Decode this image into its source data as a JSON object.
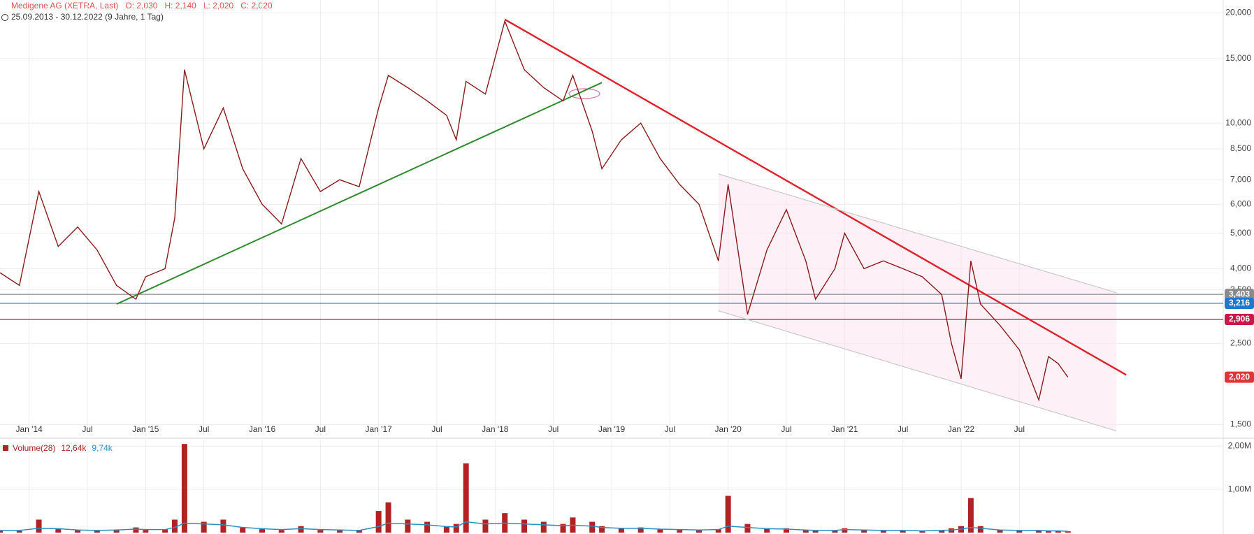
{
  "chart_data": [
    {
      "type": "line",
      "title": "Medigene AG (XETRA, Last)",
      "ohlc": [
        "O: 2,030",
        "H: 2,140",
        "L: 2,020",
        "C: 2,020"
      ],
      "subtitle": "25.09.2013 - 30.12.2022  (9 Jahre, 1 Tag)",
      "log_scale": true,
      "grid": true,
      "xlim": [
        "2013-10",
        "2024-04"
      ],
      "xticks": [
        {
          "value": "2014-01",
          "label": "Jan '14"
        },
        {
          "value": "2014-07",
          "label": "Jul"
        },
        {
          "value": "2015-01",
          "label": "Jan '15"
        },
        {
          "value": "2015-07",
          "label": "Jul"
        },
        {
          "value": "2016-01",
          "label": "Jan '16"
        },
        {
          "value": "2016-07",
          "label": "Jul"
        },
        {
          "value": "2017-01",
          "label": "Jan '17"
        },
        {
          "value": "2017-07",
          "label": "Jul"
        },
        {
          "value": "2018-01",
          "label": "Jan '18"
        },
        {
          "value": "2018-07",
          "label": "Jul"
        },
        {
          "value": "2019-01",
          "label": "Jan '19"
        },
        {
          "value": "2019-07",
          "label": "Jul"
        },
        {
          "value": "2020-01",
          "label": "Jan '20"
        },
        {
          "value": "2020-07",
          "label": "Jul"
        },
        {
          "value": "2021-01",
          "label": "Jan '21"
        },
        {
          "value": "2021-07",
          "label": "Jul"
        },
        {
          "value": "2022-01",
          "label": "Jan '22"
        },
        {
          "value": "2022-07",
          "label": "Jul"
        }
      ],
      "ylim": [
        1.4,
        21.7
      ],
      "yticks": [
        {
          "value": 20,
          "label": "20,000"
        },
        {
          "value": 15,
          "label": "15,000"
        },
        {
          "value": 10,
          "label": "10,000"
        },
        {
          "value": 8.5,
          "label": "8,500"
        },
        {
          "value": 7,
          "label": "7,000"
        },
        {
          "value": 6,
          "label": "6,000"
        },
        {
          "value": 5,
          "label": "5,000"
        },
        {
          "value": 4,
          "label": "4,000"
        },
        {
          "value": 3.5,
          "label": "3,500"
        },
        {
          "value": 2.5,
          "label": "2,500"
        },
        {
          "value": 1.5,
          "label": "1,500"
        }
      ],
      "x": [
        "2013-10",
        "2013-12",
        "2014-02",
        "2014-04",
        "2014-06",
        "2014-08",
        "2014-10",
        "2014-12",
        "2015-01",
        "2015-03",
        "2015-04",
        "2015-05",
        "2015-07",
        "2015-09",
        "2015-11",
        "2016-01",
        "2016-03",
        "2016-05",
        "2016-07",
        "2016-09",
        "2016-11",
        "2017-01",
        "2017-02",
        "2017-04",
        "2017-06",
        "2017-08",
        "2017-09",
        "2017-10",
        "2017-12",
        "2018-02",
        "2018-04",
        "2018-06",
        "2018-08",
        "2018-09",
        "2018-11",
        "2018-12",
        "2019-02",
        "2019-04",
        "2019-06",
        "2019-08",
        "2019-10",
        "2019-12",
        "2020-01",
        "2020-03",
        "2020-05",
        "2020-07",
        "2020-09",
        "2020-10",
        "2020-12",
        "2021-01",
        "2021-03",
        "2021-05",
        "2021-07",
        "2021-09",
        "2021-11",
        "2021-12",
        "2022-01",
        "2022-02",
        "2022-03",
        "2022-05",
        "2022-07",
        "2022-09",
        "2022-10",
        "2022-11",
        "2022-12"
      ],
      "series": [
        {
          "name": "Medigene AG",
          "color": "#8b1a1a",
          "values": [
            3.9,
            3.6,
            6.5,
            4.6,
            5.2,
            4.5,
            3.6,
            3.3,
            3.8,
            4.0,
            5.5,
            14.0,
            8.5,
            11.0,
            7.5,
            6.0,
            5.3,
            8.0,
            6.5,
            7.0,
            6.7,
            11.0,
            13.5,
            12.5,
            11.5,
            10.5,
            9.0,
            13.0,
            12.0,
            19.0,
            14.0,
            12.5,
            11.5,
            13.5,
            9.5,
            7.5,
            9.0,
            10.0,
            8.0,
            6.8,
            6.0,
            4.2,
            6.8,
            3.0,
            4.5,
            5.8,
            4.2,
            3.3,
            4.0,
            5.0,
            4.0,
            4.2,
            4.0,
            3.8,
            3.4,
            2.5,
            2.0,
            4.2,
            3.2,
            2.8,
            2.4,
            1.75,
            2.3,
            2.2,
            2.02
          ]
        }
      ],
      "trendlines": [
        {
          "color": "#e0202a",
          "x": [
            "2018-02",
            "2023-06"
          ],
          "values": [
            19.2,
            2.05
          ]
        },
        {
          "color": "#2e8b2e",
          "x": [
            "2014-10",
            "2018-12"
          ],
          "values": [
            3.2,
            12.9
          ]
        },
        {
          "color": "#c8c8c8",
          "x": [
            "2019-12",
            "2023-05"
          ],
          "values": [
            7.26,
            3.44
          ]
        },
        {
          "color": "#c8c8c8",
          "x": [
            "2019-12",
            "2023-05"
          ],
          "values": [
            3.07,
            1.44
          ]
        }
      ],
      "levels": [
        {
          "value": 3.403,
          "label": "3,403",
          "color": "#8a8a8a",
          "line": true
        },
        {
          "value": 3.216,
          "label": "3,216",
          "color": "#1e78d0",
          "line": true
        },
        {
          "value": 2.906,
          "label": "2,906",
          "color": "#c8184a",
          "line": true
        },
        {
          "value": 2.02,
          "label": "2,020",
          "color": "#e03535",
          "line": false
        }
      ]
    },
    {
      "type": "bar",
      "legend_texts": [
        "Volume(28)",
        "12,64k",
        "9,74k"
      ],
      "legend_colors": [
        "#b22222",
        "#b22222",
        "#2a8fc0"
      ],
      "ylim": [
        0,
        2.15
      ],
      "yticks": [
        {
          "value": 1,
          "label": "1,00M"
        },
        {
          "value": 2,
          "label": "2,00M"
        }
      ],
      "x": [
        "2013-10",
        "2013-12",
        "2014-02",
        "2014-04",
        "2014-06",
        "2014-08",
        "2014-10",
        "2014-12",
        "2015-01",
        "2015-03",
        "2015-04",
        "2015-05",
        "2015-07",
        "2015-09",
        "2015-11",
        "2016-01",
        "2016-03",
        "2016-05",
        "2016-07",
        "2016-09",
        "2016-11",
        "2017-01",
        "2017-02",
        "2017-04",
        "2017-06",
        "2017-08",
        "2017-09",
        "2017-10",
        "2017-12",
        "2018-02",
        "2018-04",
        "2018-06",
        "2018-08",
        "2018-09",
        "2018-11",
        "2018-12",
        "2019-02",
        "2019-04",
        "2019-06",
        "2019-08",
        "2019-10",
        "2019-12",
        "2020-01",
        "2020-03",
        "2020-05",
        "2020-07",
        "2020-09",
        "2020-10",
        "2020-12",
        "2021-01",
        "2021-03",
        "2021-05",
        "2021-07",
        "2021-09",
        "2021-11",
        "2021-12",
        "2022-01",
        "2022-02",
        "2022-03",
        "2022-05",
        "2022-07",
        "2022-09",
        "2022-10",
        "2022-11",
        "2022-12"
      ],
      "series": [
        {
          "name": "Volume(28)",
          "color": "#b22222",
          "values": [
            0.05,
            0.04,
            0.3,
            0.08,
            0.06,
            0.05,
            0.07,
            0.12,
            0.06,
            0.08,
            0.3,
            2.05,
            0.25,
            0.3,
            0.12,
            0.08,
            0.06,
            0.15,
            0.06,
            0.05,
            0.05,
            0.5,
            0.7,
            0.3,
            0.25,
            0.15,
            0.2,
            1.6,
            0.3,
            0.45,
            0.3,
            0.25,
            0.2,
            0.35,
            0.25,
            0.15,
            0.1,
            0.12,
            0.08,
            0.06,
            0.06,
            0.08,
            0.85,
            0.2,
            0.1,
            0.1,
            0.06,
            0.05,
            0.05,
            0.1,
            0.06,
            0.05,
            0.05,
            0.04,
            0.05,
            0.1,
            0.15,
            0.8,
            0.15,
            0.06,
            0.05,
            0.05,
            0.04,
            0.04,
            0.03
          ]
        },
        {
          "color": "#2a8fc0",
          "values": [
            0.05,
            0.05,
            0.1,
            0.09,
            0.06,
            0.05,
            0.06,
            0.08,
            0.07,
            0.07,
            0.12,
            0.22,
            0.2,
            0.18,
            0.12,
            0.09,
            0.07,
            0.09,
            0.07,
            0.06,
            0.05,
            0.14,
            0.22,
            0.2,
            0.18,
            0.14,
            0.13,
            0.25,
            0.2,
            0.22,
            0.2,
            0.18,
            0.16,
            0.17,
            0.15,
            0.12,
            0.1,
            0.1,
            0.08,
            0.07,
            0.06,
            0.07,
            0.15,
            0.12,
            0.09,
            0.08,
            0.06,
            0.05,
            0.05,
            0.07,
            0.06,
            0.05,
            0.05,
            0.04,
            0.05,
            0.06,
            0.08,
            0.12,
            0.1,
            0.06,
            0.05,
            0.05,
            0.04,
            0.04,
            0.03
          ]
        }
      ]
    }
  ]
}
